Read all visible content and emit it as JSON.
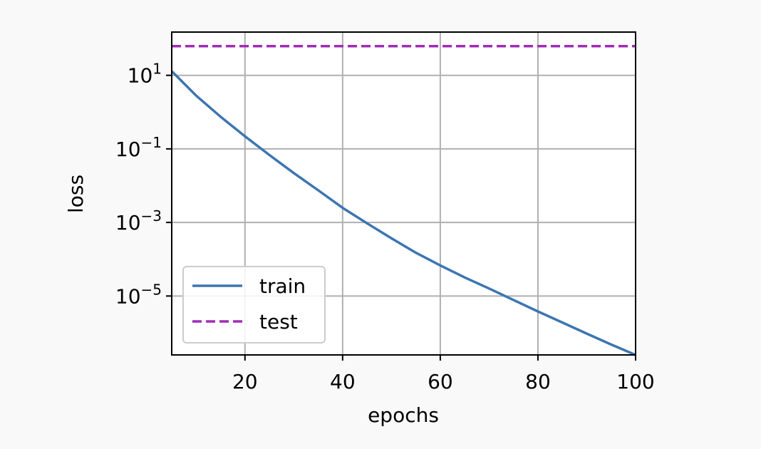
{
  "chart_data": {
    "type": "line",
    "xlabel": "epochs",
    "ylabel": "loss",
    "xlim": [
      5,
      100
    ],
    "ylim": [
      2.5e-07,
      150
    ],
    "yscale": "log",
    "grid": true,
    "legend_position": "lower-left",
    "x_ticks": [
      20,
      40,
      60,
      80,
      100
    ],
    "y_ticks": [
      {
        "value": 10,
        "base": "10",
        "exp": "1"
      },
      {
        "value": 0.1,
        "base": "10",
        "exp": "−1"
      },
      {
        "value": 0.001,
        "base": "10",
        "exp": "−3"
      },
      {
        "value": 1e-05,
        "base": "10",
        "exp": "−5"
      }
    ],
    "series": [
      {
        "name": "train",
        "color": "#3d75b1",
        "dash": "solid",
        "x": [
          5,
          10,
          15,
          20,
          25,
          30,
          35,
          40,
          45,
          50,
          55,
          60,
          65,
          70,
          75,
          80,
          85,
          90,
          95,
          100
        ],
        "y": [
          13,
          2.8,
          0.75,
          0.22,
          0.068,
          0.022,
          0.0075,
          0.0025,
          0.00095,
          0.00037,
          0.00015,
          6.8e-05,
          3.2e-05,
          1.6e-05,
          7.8e-06,
          3.8e-06,
          1.9e-06,
          9.5e-07,
          4.8e-07,
          2.5e-07
        ]
      },
      {
        "name": "test",
        "color": "#a12cb5",
        "dash": "dashed",
        "x": [
          5,
          100
        ],
        "y": [
          62,
          62
        ]
      }
    ]
  }
}
